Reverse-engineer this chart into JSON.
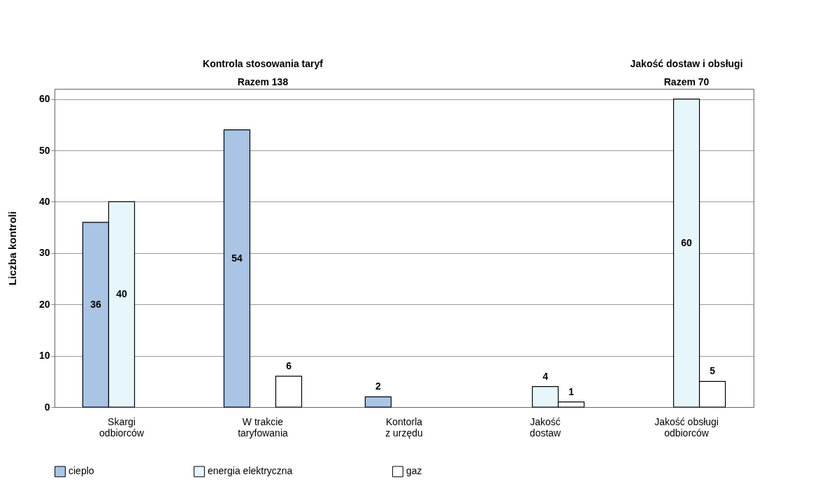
{
  "chart_data": {
    "type": "bar",
    "categories": [
      "Skargi\nodbiorców",
      "W trakcie\ntaryfowania",
      "Kontorla\nz urzędu",
      "Jakość\ndostaw",
      "Jakość obsługi\nodbiorców"
    ],
    "series": [
      {
        "name": "cieplo",
        "color": "#a9c4e4",
        "values": [
          36,
          54,
          2,
          null,
          null
        ]
      },
      {
        "name": "energia elektryczna",
        "color": "#e6f6fa",
        "values": [
          40,
          null,
          null,
          4,
          60
        ]
      },
      {
        "name": "gaz",
        "color": "#ffffff",
        "values": [
          null,
          6,
          null,
          1,
          5
        ]
      }
    ],
    "ylabel": "Liczba kontroli",
    "ylim": [
      0,
      62
    ],
    "yticks": [
      0,
      10,
      20,
      30,
      40,
      50,
      60
    ],
    "grid": "y",
    "legend": "bottom",
    "data_labels": true,
    "annotations": [
      "Kontrola stosowania taryf\nRazem 138",
      "Jakość dostaw i obsługi\nRazem 70"
    ]
  }
}
